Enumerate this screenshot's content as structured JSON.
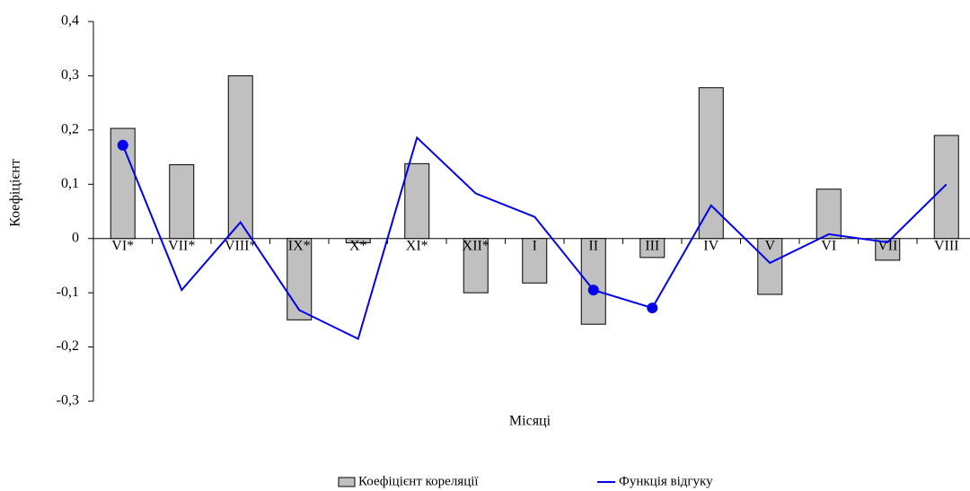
{
  "chart_data": {
    "type": "bar_line",
    "x_label": "Місяці",
    "y_label": "Коефіцієнт",
    "categories": [
      "VI*",
      "VII*",
      "VIII*",
      "IX*",
      "X*",
      "XI*",
      "XII*",
      "I",
      "II",
      "III",
      "IV",
      "V",
      "VI",
      "VII",
      "VIII"
    ],
    "series": [
      {
        "name": "Коефіцієнт кореляції",
        "kind": "bar",
        "color": "#c0c0c0",
        "values": [
          0.203,
          0.136,
          0.3,
          -0.15,
          -0.008,
          0.138,
          -0.1,
          -0.082,
          -0.158,
          -0.035,
          0.278,
          -0.103,
          0.091,
          -0.04,
          0.19
        ]
      },
      {
        "name": "Функція відгуку",
        "kind": "line",
        "color": "#0000ee",
        "values": [
          0.172,
          -0.095,
          0.03,
          -0.132,
          -0.185,
          0.186,
          0.083,
          0.04,
          -0.095,
          -0.128,
          0.061,
          -0.045,
          0.008,
          -0.007,
          0.1
        ],
        "marker_points": [
          true,
          false,
          false,
          false,
          false,
          false,
          false,
          false,
          true,
          true,
          false,
          false,
          false,
          false,
          false
        ]
      }
    ],
    "ylim": [
      -0.3,
      0.4
    ],
    "yticks": [
      {
        "value": -0.3,
        "label": "-0,3"
      },
      {
        "value": -0.2,
        "label": "-0,2"
      },
      {
        "value": -0.1,
        "label": "-0,1"
      },
      0,
      {
        "value": 0.1,
        "label": "0,1"
      },
      {
        "value": 0.2,
        "label": "0,2"
      },
      {
        "value": 0.3,
        "label": "0,3"
      },
      {
        "value": 0.4,
        "label": "0,4"
      }
    ],
    "legend": "bottom"
  }
}
